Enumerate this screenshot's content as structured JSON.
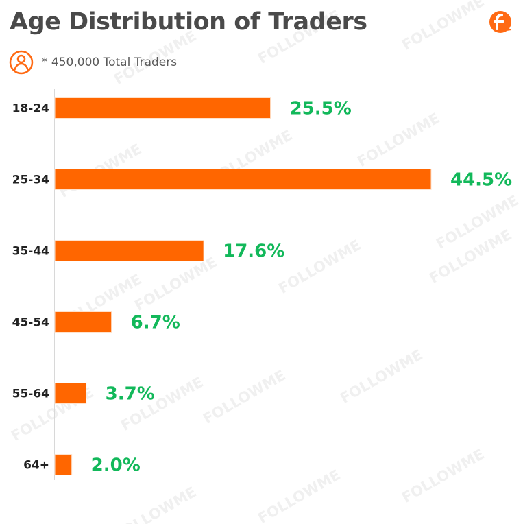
{
  "header": {
    "title": "Age Distribution of Traders",
    "subtitle": "* 450,000 Total Traders"
  },
  "icons": {
    "brand": "followme-logo-icon",
    "user": "user-circle-icon"
  },
  "colors": {
    "bar": "#ff6600",
    "value_label": "#12b85a",
    "title": "#4a4a4a",
    "axis": "#d8d8d8",
    "brand_accent": "#ff6a13",
    "watermark": "#e3e3e3"
  },
  "watermark": "FOLLOWME",
  "chart_data": {
    "type": "bar",
    "orientation": "horizontal",
    "title": "Age Distribution of Traders",
    "subtitle": "* 450,000 Total Traders",
    "categories": [
      "18-24",
      "25-34",
      "35-44",
      "45-54",
      "55-64",
      "64+"
    ],
    "values": [
      25.5,
      44.5,
      17.6,
      6.7,
      3.7,
      2.0
    ],
    "value_labels": [
      "25.5%",
      "44.5%",
      "17.6%",
      "6.7%",
      "3.7%",
      "2.0%"
    ],
    "xlabel": "",
    "ylabel": "",
    "unit": "%",
    "xlim": [
      0,
      44.5
    ],
    "grid": false,
    "legend": "none"
  }
}
